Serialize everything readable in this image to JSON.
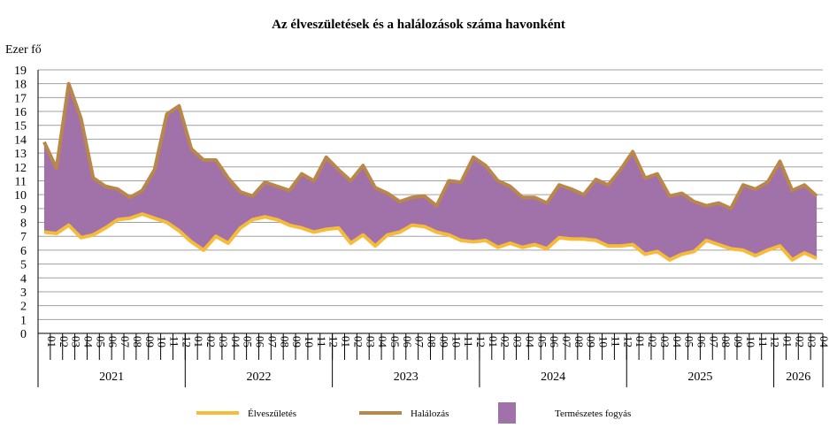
{
  "chart_data": {
    "type": "line-area",
    "title": "Az élveszületések és a halálozások száma havonként",
    "y_label": "Ezer fő",
    "categories": [
      "01",
      "02",
      "03",
      "04",
      "05",
      "06",
      "07",
      "08",
      "09",
      "10",
      "11",
      "12",
      "01",
      "02",
      "03",
      "04",
      "05",
      "06",
      "07",
      "08",
      "09",
      "10",
      "11",
      "12",
      "01",
      "02",
      "03",
      "04",
      "05",
      "06",
      "07",
      "08",
      "09",
      "10",
      "11",
      "12",
      "01",
      "02",
      "03",
      "04",
      "05",
      "06",
      "07",
      "08",
      "09",
      "10",
      "11",
      "12",
      "01",
      "02",
      "03",
      "04",
      "05",
      "06",
      "07",
      "08",
      "09",
      "10",
      "11",
      "12",
      "01",
      "02",
      "03",
      "04"
    ],
    "groups": [
      "2021",
      "2022",
      "2023",
      "2024",
      "2025",
      "2026"
    ],
    "series": [
      {
        "name": "Élveszületés",
        "color": "#f7bb3a",
        "values": [
          7.3,
          7.2,
          7.8,
          6.9,
          7.1,
          7.6,
          8.2,
          8.3,
          8.6,
          8.3,
          8.0,
          7.4,
          6.6,
          6.0,
          7.0,
          6.5,
          7.6,
          8.2,
          8.4,
          8.2,
          7.8,
          7.6,
          7.3,
          7.5,
          7.6,
          6.5,
          7.1,
          6.3,
          7.1,
          7.3,
          7.8,
          7.7,
          7.3,
          7.1,
          6.7,
          6.6,
          6.7,
          6.2,
          6.5,
          6.2,
          6.4,
          6.1,
          6.9,
          6.8,
          6.8,
          6.7,
          6.3,
          6.3,
          6.4,
          5.7,
          5.9,
          5.3,
          5.7,
          5.9,
          6.7,
          6.4,
          6.1,
          6.0,
          5.6,
          6.0,
          6.3,
          5.3,
          5.8,
          5.4
        ]
      },
      {
        "name": "Halálozás",
        "color": "#b9874a",
        "values": [
          13.8,
          11.9,
          18.0,
          15.5,
          11.2,
          10.6,
          10.4,
          9.8,
          10.3,
          11.8,
          15.8,
          16.4,
          13.3,
          12.5,
          12.5,
          11.2,
          10.2,
          9.9,
          10.9,
          10.6,
          10.3,
          11.5,
          11.0,
          12.7,
          11.8,
          11.0,
          12.1,
          10.5,
          10.1,
          9.5,
          9.8,
          9.9,
          9.2,
          11.0,
          10.9,
          12.7,
          12.1,
          11.0,
          10.6,
          9.8,
          9.8,
          9.4,
          10.7,
          10.4,
          10.0,
          11.1,
          10.7,
          11.8,
          13.1,
          11.2,
          11.5,
          9.9,
          10.1,
          9.5,
          9.2,
          9.4,
          9.0,
          10.7,
          10.4,
          10.9,
          12.4,
          10.3,
          10.7,
          9.9
        ]
      }
    ],
    "area": {
      "name": "Természetes fogyás",
      "color": "#a171aa"
    },
    "ylim": [
      0,
      19
    ],
    "yticks": [
      0,
      1,
      2,
      3,
      4,
      5,
      6,
      7,
      8,
      9,
      10,
      11,
      12,
      13,
      14,
      15,
      16,
      17,
      18,
      19
    ],
    "grid": true
  }
}
